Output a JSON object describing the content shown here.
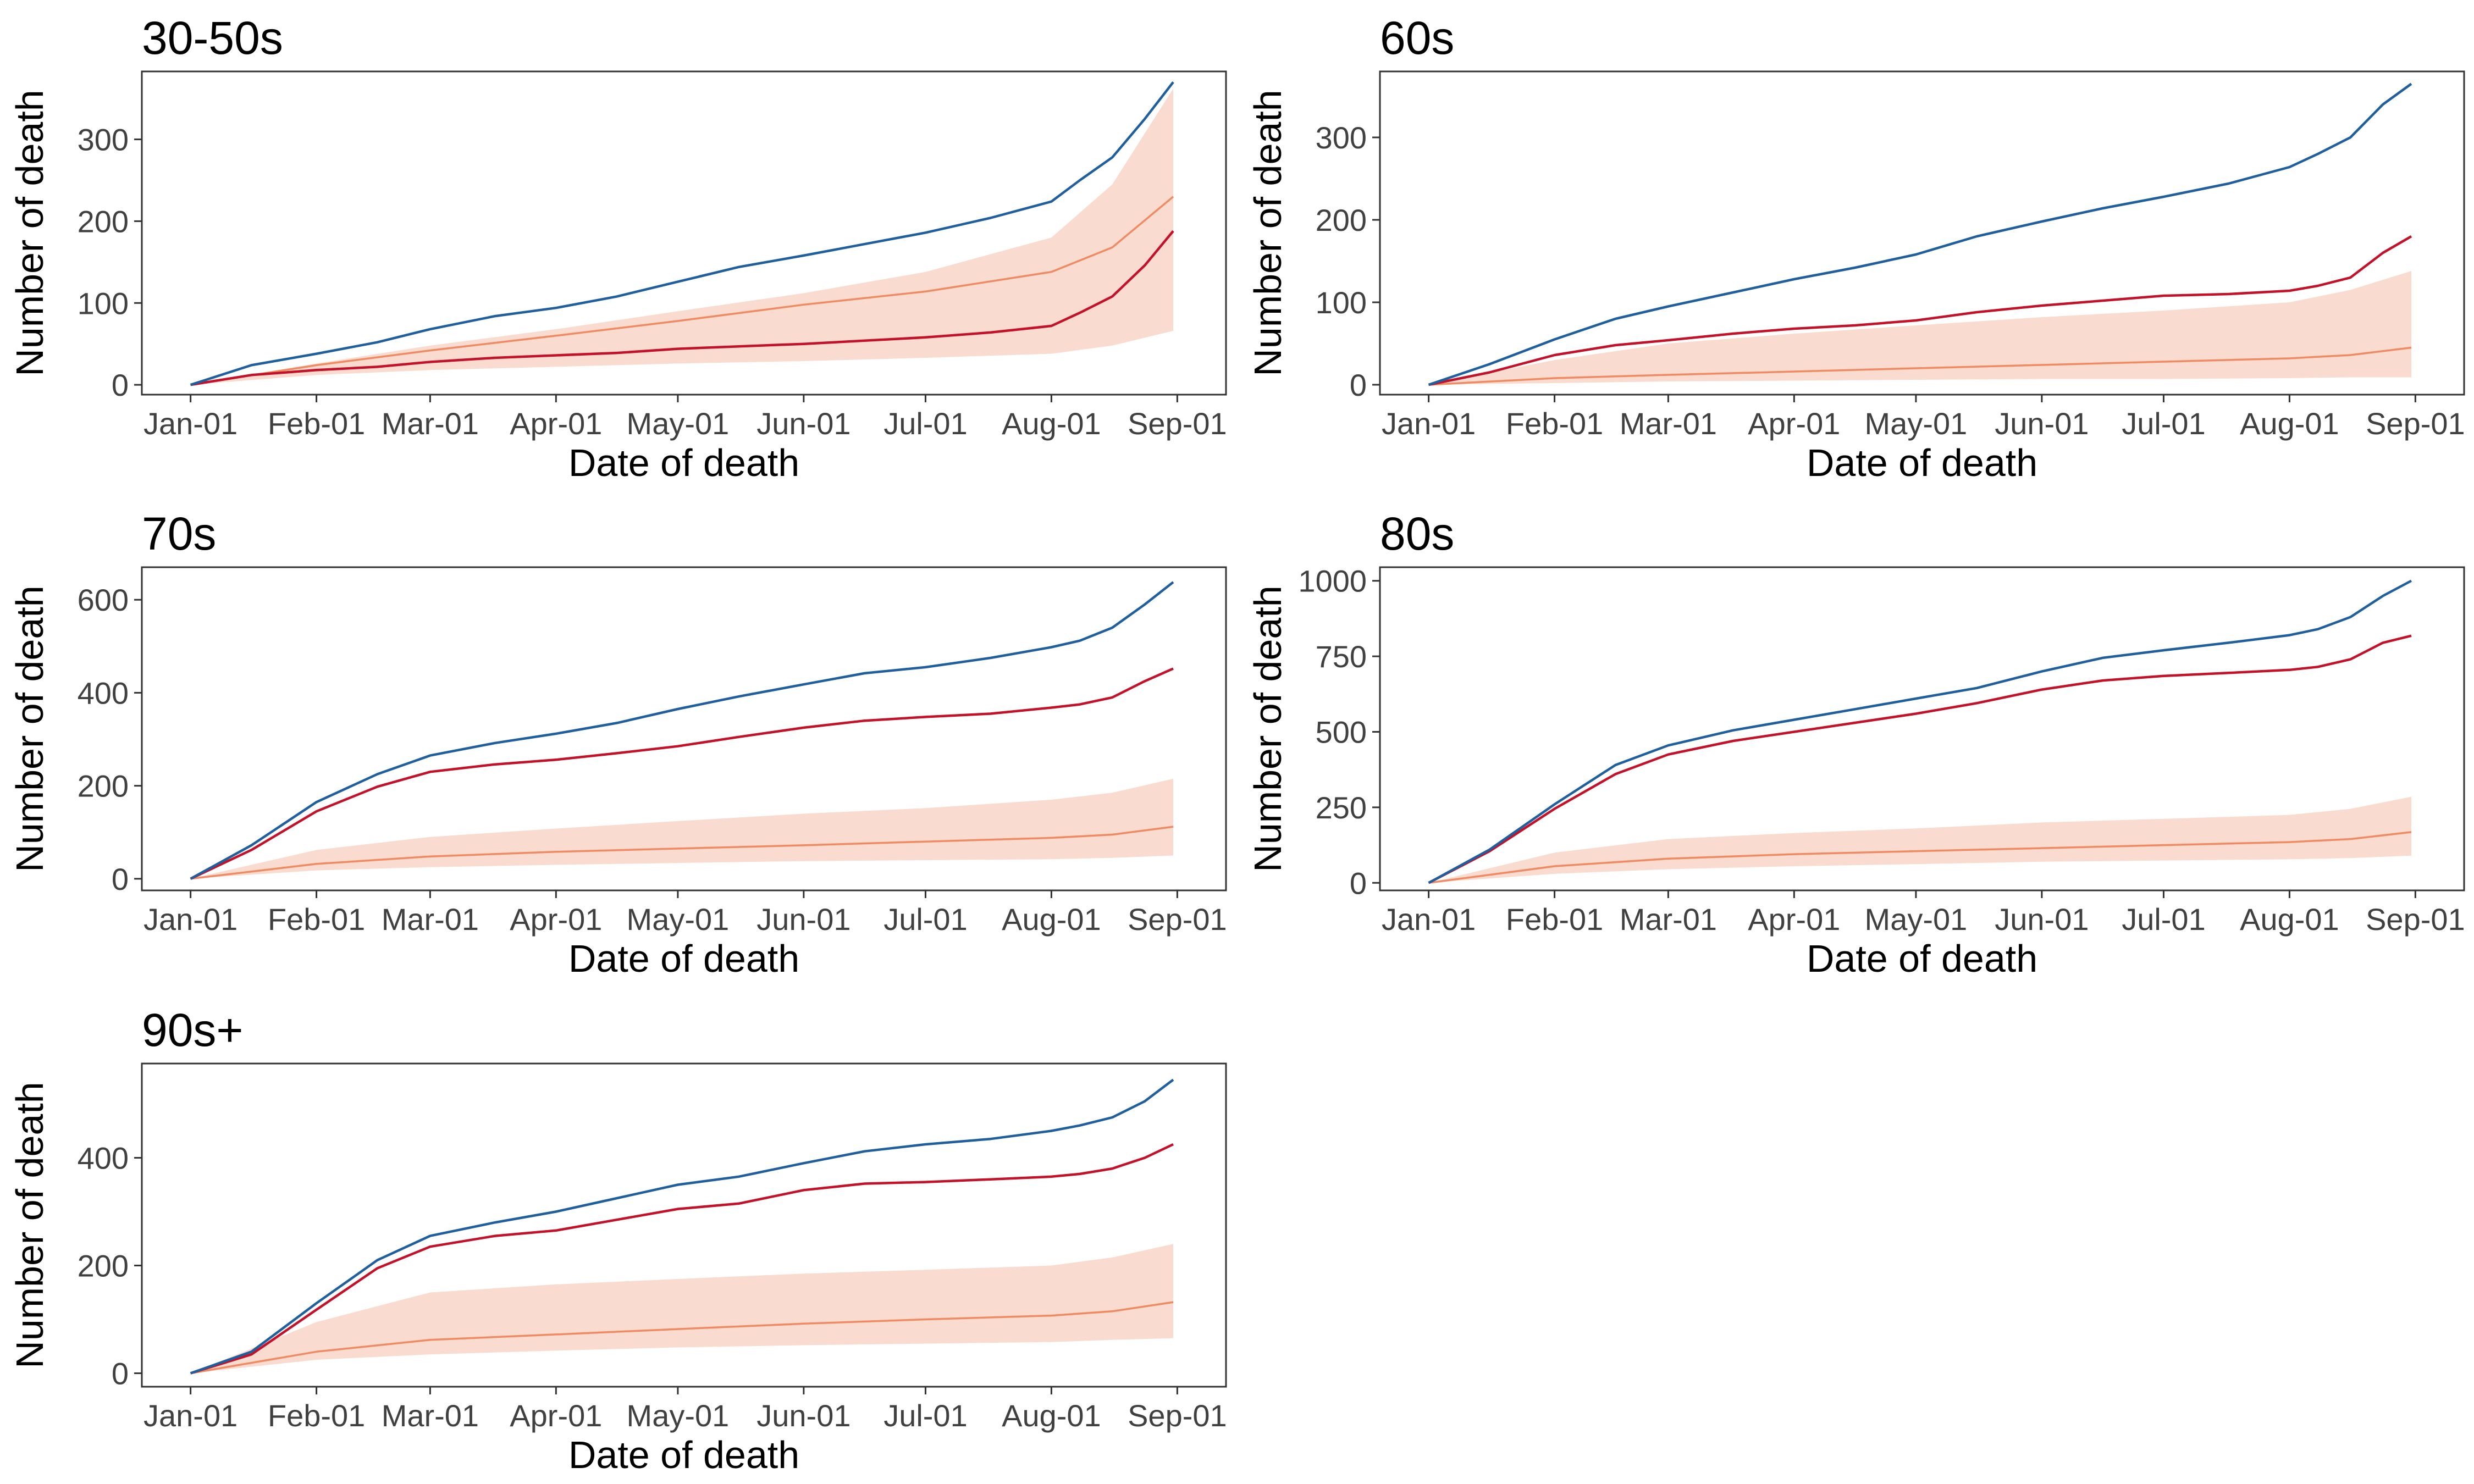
{
  "colors": {
    "observed": "#1f5f9e",
    "adjusted": "#c4112a",
    "expected_line": "#ef8a62",
    "expected_band": "#f9dccf",
    "axis": "#333333",
    "tick_text": "#404040",
    "title_text": "#000000"
  },
  "chart_data": [
    {
      "type": "line",
      "title": "30-50s",
      "xlabel": "Date of death",
      "ylabel": "Number of death",
      "x_ticks": [
        "Jan-01",
        "Feb-01",
        "Mar-01",
        "Apr-01",
        "May-01",
        "Jun-01",
        "Jul-01",
        "Aug-01",
        "Sep-01"
      ],
      "x_tick_days": [
        0,
        31,
        59,
        90,
        120,
        151,
        181,
        212,
        243
      ],
      "y_ticks": [
        0,
        100,
        200,
        300
      ],
      "ylim": [
        -12,
        383
      ],
      "grid": false,
      "band": {
        "x": [
          0,
          31,
          59,
          90,
          120,
          151,
          181,
          212,
          227,
          242
        ],
        "low": [
          0,
          12,
          18,
          22,
          26,
          29,
          33,
          38,
          48,
          66
        ],
        "high": [
          0,
          26,
          48,
          68,
          90,
          112,
          138,
          180,
          245,
          362
        ]
      },
      "series": [
        {
          "role": "observed",
          "x": [
            0,
            15,
            31,
            46,
            59,
            75,
            90,
            105,
            120,
            135,
            151,
            166,
            181,
            197,
            212,
            219,
            227,
            235,
            242
          ],
          "y": [
            0,
            24,
            38,
            52,
            68,
            84,
            94,
            108,
            126,
            144,
            158,
            172,
            186,
            204,
            224,
            250,
            278,
            325,
            370
          ]
        },
        {
          "role": "adjusted",
          "x": [
            0,
            15,
            31,
            46,
            59,
            75,
            90,
            105,
            120,
            135,
            151,
            166,
            181,
            197,
            212,
            219,
            227,
            235,
            242
          ],
          "y": [
            0,
            12,
            18,
            22,
            28,
            33,
            36,
            39,
            44,
            47,
            50,
            54,
            58,
            64,
            72,
            88,
            108,
            146,
            188
          ]
        },
        {
          "role": "expected",
          "x": [
            0,
            31,
            59,
            90,
            120,
            151,
            181,
            212,
            227,
            242
          ],
          "y": [
            0,
            24,
            42,
            60,
            78,
            98,
            114,
            138,
            168,
            230
          ]
        }
      ]
    },
    {
      "type": "line",
      "title": "60s",
      "xlabel": "Date of death",
      "ylabel": "Number of death",
      "x_ticks": [
        "Jan-01",
        "Feb-01",
        "Mar-01",
        "Apr-01",
        "May-01",
        "Jun-01",
        "Jul-01",
        "Aug-01",
        "Sep-01"
      ],
      "x_tick_days": [
        0,
        31,
        59,
        90,
        120,
        151,
        181,
        212,
        243
      ],
      "y_ticks": [
        0,
        100,
        200,
        300
      ],
      "ylim": [
        -12,
        380
      ],
      "grid": false,
      "band": {
        "x": [
          0,
          31,
          59,
          90,
          120,
          151,
          181,
          212,
          227,
          242
        ],
        "low": [
          0,
          2,
          4,
          5,
          6,
          7,
          7,
          8,
          9,
          9
        ],
        "high": [
          0,
          30,
          50,
          62,
          72,
          82,
          90,
          100,
          115,
          138
        ]
      },
      "series": [
        {
          "role": "observed",
          "x": [
            0,
            15,
            31,
            46,
            59,
            75,
            90,
            105,
            120,
            135,
            151,
            166,
            181,
            197,
            212,
            219,
            227,
            235,
            242
          ],
          "y": [
            0,
            25,
            55,
            80,
            95,
            112,
            128,
            142,
            158,
            180,
            198,
            214,
            228,
            244,
            264,
            280,
            300,
            340,
            365
          ]
        },
        {
          "role": "adjusted",
          "x": [
            0,
            15,
            31,
            46,
            59,
            75,
            90,
            105,
            120,
            135,
            151,
            166,
            181,
            197,
            212,
            219,
            227,
            235,
            242
          ],
          "y": [
            0,
            15,
            36,
            48,
            54,
            62,
            68,
            72,
            78,
            88,
            96,
            102,
            108,
            110,
            114,
            120,
            130,
            160,
            180
          ]
        },
        {
          "role": "expected",
          "x": [
            0,
            31,
            59,
            90,
            120,
            151,
            181,
            212,
            227,
            242
          ],
          "y": [
            0,
            8,
            12,
            16,
            20,
            24,
            28,
            32,
            36,
            45
          ]
        }
      ]
    },
    {
      "type": "line",
      "title": "70s",
      "xlabel": "Date of death",
      "ylabel": "Number of death",
      "x_ticks": [
        "Jan-01",
        "Feb-01",
        "Mar-01",
        "Apr-01",
        "May-01",
        "Jun-01",
        "Jul-01",
        "Aug-01",
        "Sep-01"
      ],
      "x_tick_days": [
        0,
        31,
        59,
        90,
        120,
        151,
        181,
        212,
        243
      ],
      "y_ticks": [
        0,
        200,
        400,
        600
      ],
      "ylim": [
        -25,
        670
      ],
      "grid": false,
      "band": {
        "x": [
          0,
          31,
          59,
          90,
          120,
          151,
          181,
          212,
          227,
          242
        ],
        "low": [
          0,
          18,
          25,
          30,
          34,
          38,
          40,
          42,
          45,
          50
        ],
        "high": [
          0,
          62,
          90,
          108,
          124,
          140,
          152,
          170,
          185,
          215
        ]
      },
      "series": [
        {
          "role": "observed",
          "x": [
            0,
            15,
            31,
            46,
            59,
            75,
            90,
            105,
            120,
            135,
            151,
            166,
            181,
            197,
            212,
            219,
            227,
            235,
            242
          ],
          "y": [
            0,
            72,
            165,
            225,
            265,
            292,
            312,
            335,
            365,
            392,
            418,
            442,
            455,
            475,
            498,
            512,
            540,
            590,
            638
          ]
        },
        {
          "role": "adjusted",
          "x": [
            0,
            15,
            31,
            46,
            59,
            75,
            90,
            105,
            120,
            135,
            151,
            166,
            181,
            197,
            212,
            219,
            227,
            235,
            242
          ],
          "y": [
            0,
            62,
            145,
            198,
            230,
            246,
            256,
            270,
            285,
            305,
            325,
            340,
            348,
            355,
            368,
            375,
            390,
            425,
            452
          ]
        },
        {
          "role": "expected",
          "x": [
            0,
            31,
            59,
            90,
            120,
            151,
            181,
            212,
            227,
            242
          ],
          "y": [
            0,
            32,
            48,
            58,
            65,
            72,
            80,
            88,
            95,
            112
          ]
        }
      ]
    },
    {
      "type": "line",
      "title": "80s",
      "xlabel": "Date of death",
      "ylabel": "Number of death",
      "x_ticks": [
        "Jan-01",
        "Feb-01",
        "Mar-01",
        "Apr-01",
        "May-01",
        "Jun-01",
        "Jul-01",
        "Aug-01",
        "Sep-01"
      ],
      "x_tick_days": [
        0,
        31,
        59,
        90,
        120,
        151,
        181,
        212,
        243
      ],
      "y_ticks": [
        0,
        250,
        500,
        750,
        1000
      ],
      "ylim": [
        -25,
        1045
      ],
      "grid": false,
      "band": {
        "x": [
          0,
          31,
          59,
          90,
          120,
          151,
          181,
          212,
          227,
          242
        ],
        "low": [
          0,
          30,
          45,
          55,
          62,
          70,
          74,
          78,
          82,
          90
        ],
        "high": [
          0,
          100,
          145,
          165,
          180,
          200,
          212,
          225,
          245,
          285
        ]
      },
      "series": [
        {
          "role": "observed",
          "x": [
            0,
            15,
            31,
            46,
            59,
            75,
            90,
            105,
            120,
            135,
            151,
            166,
            181,
            197,
            212,
            219,
            227,
            235,
            242
          ],
          "y": [
            0,
            110,
            260,
            390,
            455,
            505,
            540,
            575,
            610,
            645,
            700,
            745,
            770,
            795,
            820,
            840,
            880,
            950,
            1000
          ]
        },
        {
          "role": "adjusted",
          "x": [
            0,
            15,
            31,
            46,
            59,
            75,
            90,
            105,
            120,
            135,
            151,
            166,
            181,
            197,
            212,
            219,
            227,
            235,
            242
          ],
          "y": [
            0,
            105,
            245,
            360,
            425,
            470,
            500,
            530,
            560,
            595,
            640,
            670,
            685,
            695,
            705,
            715,
            740,
            795,
            818
          ]
        },
        {
          "role": "expected",
          "x": [
            0,
            31,
            59,
            90,
            120,
            151,
            181,
            212,
            227,
            242
          ],
          "y": [
            0,
            55,
            80,
            95,
            105,
            115,
            125,
            135,
            145,
            168
          ]
        }
      ]
    },
    {
      "type": "line",
      "title": "90s+",
      "xlabel": "Date of death",
      "ylabel": "Number of death",
      "x_ticks": [
        "Jan-01",
        "Feb-01",
        "Mar-01",
        "Apr-01",
        "May-01",
        "Jun-01",
        "Jul-01",
        "Aug-01",
        "Sep-01"
      ],
      "x_tick_days": [
        0,
        31,
        59,
        90,
        120,
        151,
        181,
        212,
        243
      ],
      "y_ticks": [
        0,
        200,
        400
      ],
      "ylim": [
        -25,
        575
      ],
      "grid": false,
      "band": {
        "x": [
          0,
          31,
          59,
          90,
          120,
          151,
          181,
          212,
          227,
          242
        ],
        "low": [
          0,
          25,
          35,
          42,
          48,
          52,
          55,
          58,
          62,
          65
        ],
        "high": [
          0,
          95,
          150,
          165,
          175,
          185,
          192,
          200,
          215,
          240
        ]
      },
      "series": [
        {
          "role": "observed",
          "x": [
            0,
            15,
            31,
            46,
            59,
            75,
            90,
            105,
            120,
            135,
            151,
            166,
            181,
            197,
            212,
            219,
            227,
            235,
            242
          ],
          "y": [
            0,
            40,
            130,
            210,
            255,
            280,
            300,
            325,
            350,
            365,
            390,
            412,
            425,
            435,
            450,
            460,
            475,
            505,
            545
          ]
        },
        {
          "role": "adjusted",
          "x": [
            0,
            15,
            31,
            46,
            59,
            75,
            90,
            105,
            120,
            135,
            151,
            166,
            181,
            197,
            212,
            219,
            227,
            235,
            242
          ],
          "y": [
            0,
            35,
            118,
            195,
            235,
            255,
            265,
            285,
            305,
            315,
            340,
            352,
            355,
            360,
            365,
            370,
            380,
            400,
            425
          ]
        },
        {
          "role": "expected",
          "x": [
            0,
            31,
            59,
            90,
            120,
            151,
            181,
            212,
            227,
            242
          ],
          "y": [
            0,
            40,
            62,
            72,
            82,
            92,
            100,
            107,
            115,
            132
          ]
        }
      ]
    }
  ]
}
